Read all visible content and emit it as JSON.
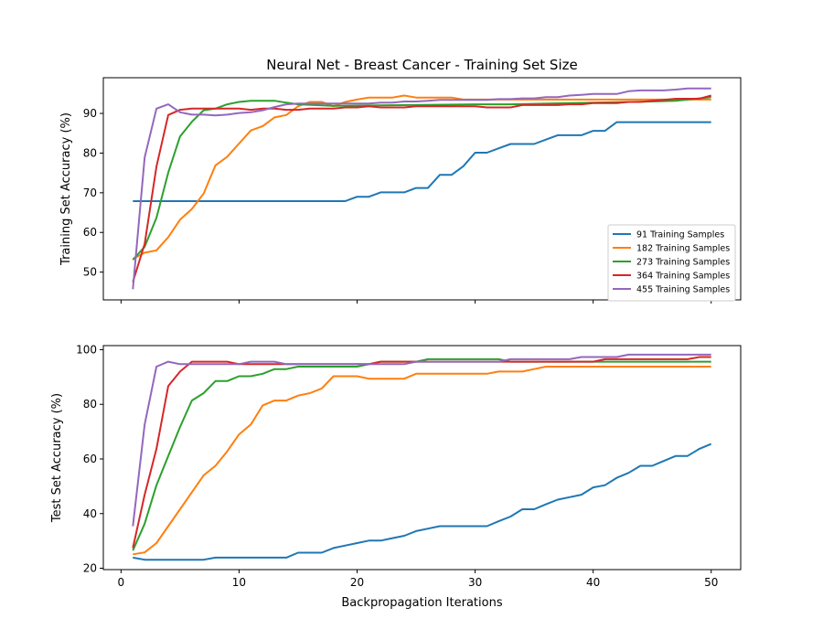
{
  "chart_data": [
    {
      "type": "line",
      "title": "Neural Net - Breast Cancer - Training Set Size",
      "xlabel": "",
      "ylabel": "Training Set Accuracy (%)",
      "xlim": [
        -1.5,
        52.5
      ],
      "ylim": [
        43,
        99
      ],
      "xticks": [
        0,
        10,
        20,
        30,
        40,
        50
      ],
      "yticks": [
        50,
        60,
        70,
        80,
        90
      ],
      "legend_position": "lower-right",
      "grid": false,
      "series": [
        {
          "name": "91 Training Samples",
          "color": "#1f77b4",
          "x": [
            1,
            19,
            20,
            21,
            22,
            24,
            25,
            26,
            27,
            28,
            29,
            30,
            31,
            32,
            33,
            35,
            36,
            37,
            39,
            40,
            41,
            42,
            50
          ],
          "y": [
            67.9,
            67.9,
            69.0,
            69.0,
            70.1,
            70.1,
            71.2,
            71.2,
            74.5,
            74.5,
            76.7,
            80.1,
            80.1,
            81.2,
            82.3,
            82.3,
            83.4,
            84.5,
            84.5,
            85.6,
            85.6,
            87.8,
            87.8
          ]
        },
        {
          "name": "182 Training Samples",
          "color": "#ff7f0e",
          "x": [
            1,
            2,
            3,
            4,
            5,
            6,
            7,
            8,
            9,
            10,
            11,
            12,
            13,
            14,
            15,
            16,
            17,
            18,
            19,
            20,
            21,
            22,
            23,
            24,
            25,
            28,
            29,
            50
          ],
          "y": [
            53.3,
            54.9,
            55.5,
            58.8,
            63.2,
            65.9,
            69.8,
            76.9,
            79.1,
            82.4,
            85.7,
            86.8,
            89.0,
            89.6,
            91.8,
            92.9,
            92.9,
            91.8,
            92.9,
            93.5,
            94.0,
            94.0,
            94.0,
            94.5,
            94.0,
            94.0,
            93.5,
            93.5
          ]
        },
        {
          "name": "273 Training Samples",
          "color": "#2ca02c",
          "x": [
            1,
            2,
            3,
            4,
            5,
            6,
            7,
            8,
            9,
            10,
            11,
            12,
            13,
            14,
            15,
            18,
            30,
            32,
            33,
            40,
            45,
            47,
            50
          ],
          "y": [
            53.1,
            56.4,
            63.7,
            75.1,
            84.2,
            87.9,
            90.8,
            91.2,
            92.3,
            92.9,
            93.2,
            93.2,
            93.2,
            92.7,
            92.3,
            91.9,
            92.3,
            92.3,
            92.3,
            92.7,
            93.0,
            93.2,
            94.1
          ]
        },
        {
          "name": "364 Training Samples",
          "color": "#d62728",
          "x": [
            1,
            2,
            3,
            4,
            5,
            6,
            7,
            8,
            9,
            10,
            11,
            12,
            13,
            14,
            15,
            16,
            17,
            18,
            19,
            20,
            21,
            22,
            23,
            24,
            25,
            26,
            27,
            28,
            29,
            30,
            31,
            32,
            33,
            34,
            35,
            36,
            37,
            38,
            39,
            40,
            41,
            42,
            43,
            44,
            45,
            46,
            47,
            48,
            49,
            50
          ],
          "y": [
            47.5,
            57.1,
            76.6,
            89.6,
            90.9,
            91.2,
            91.2,
            91.2,
            91.2,
            91.2,
            90.9,
            91.2,
            91.2,
            90.9,
            90.9,
            91.2,
            91.2,
            91.2,
            91.5,
            91.5,
            91.8,
            91.5,
            91.5,
            91.5,
            91.8,
            91.8,
            91.8,
            91.8,
            91.8,
            91.8,
            91.5,
            91.5,
            91.5,
            92.1,
            92.1,
            92.1,
            92.1,
            92.3,
            92.3,
            92.6,
            92.6,
            92.6,
            92.9,
            92.9,
            93.2,
            93.4,
            93.7,
            93.7,
            93.7,
            94.5
          ]
        },
        {
          "name": "455 Training Samples",
          "color": "#9467bd",
          "x": [
            1,
            2,
            3,
            4,
            5,
            6,
            7,
            8,
            9,
            10,
            11,
            12,
            13,
            14,
            15,
            16,
            17,
            18,
            19,
            20,
            21,
            22,
            23,
            24,
            25,
            26,
            27,
            28,
            29,
            30,
            31,
            32,
            33,
            34,
            35,
            36,
            37,
            38,
            39,
            40,
            41,
            42,
            43,
            44,
            45,
            46,
            47,
            48,
            49,
            50
          ],
          "y": [
            45.7,
            78.9,
            91.2,
            92.3,
            90.3,
            89.7,
            89.7,
            89.5,
            89.7,
            90.1,
            90.3,
            90.8,
            91.6,
            92.3,
            92.5,
            92.5,
            92.5,
            92.5,
            92.5,
            92.5,
            92.5,
            92.7,
            92.7,
            93.0,
            93.0,
            93.2,
            93.4,
            93.4,
            93.4,
            93.4,
            93.4,
            93.6,
            93.6,
            93.8,
            93.8,
            94.1,
            94.1,
            94.5,
            94.7,
            94.9,
            94.9,
            94.9,
            95.6,
            95.8,
            95.8,
            95.8,
            96.0,
            96.3,
            96.3,
            96.3
          ]
        }
      ]
    },
    {
      "type": "line",
      "title": "",
      "xlabel": "Backpropagation Iterations",
      "ylabel": "Test Set Accuracy (%)",
      "xlim": [
        -1.5,
        52.5
      ],
      "ylim": [
        19.5,
        101.5
      ],
      "xticks": [
        0,
        10,
        20,
        30,
        40,
        50
      ],
      "yticks": [
        20,
        40,
        60,
        80,
        100
      ],
      "grid": false,
      "series": [
        {
          "name": "91 Training Samples",
          "color": "#1f77b4",
          "x": [
            1,
            2,
            7,
            8,
            14,
            15,
            17,
            18,
            19,
            20,
            21,
            22,
            23,
            24,
            25,
            26,
            27,
            31,
            32,
            33,
            34,
            35,
            36,
            37,
            38,
            39,
            40,
            41,
            42,
            43,
            44,
            45,
            46,
            47,
            48,
            49,
            50
          ],
          "y": [
            23.9,
            23.1,
            23.1,
            23.9,
            23.9,
            25.7,
            25.7,
            27.4,
            28.3,
            29.2,
            30.1,
            30.1,
            31.0,
            31.9,
            33.6,
            34.5,
            35.4,
            35.4,
            37.2,
            38.9,
            41.6,
            41.6,
            43.4,
            45.1,
            46.0,
            46.9,
            49.6,
            50.4,
            53.1,
            54.9,
            57.5,
            57.5,
            59.3,
            61.1,
            61.1,
            63.7,
            65.5
          ]
        },
        {
          "name": "182 Training Samples",
          "color": "#ff7f0e",
          "x": [
            1,
            2,
            3,
            4,
            5,
            6,
            7,
            8,
            9,
            10,
            11,
            12,
            13,
            14,
            15,
            16,
            17,
            18,
            19,
            20,
            21,
            22,
            23,
            24,
            25,
            26,
            27,
            28,
            29,
            30,
            31,
            32,
            33,
            34,
            35,
            36,
            37,
            38,
            39,
            40,
            50
          ],
          "y": [
            25.1,
            25.8,
            29.2,
            35.4,
            41.6,
            47.8,
            54.0,
            57.5,
            62.8,
            69.0,
            72.6,
            79.6,
            81.4,
            81.4,
            83.2,
            84.1,
            85.8,
            90.3,
            90.3,
            90.3,
            89.4,
            89.4,
            89.4,
            89.4,
            91.2,
            91.2,
            91.2,
            91.2,
            91.2,
            91.2,
            91.2,
            92.0,
            92.0,
            92.0,
            92.9,
            93.8,
            93.8,
            93.8,
            93.8,
            93.8,
            93.8
          ]
        },
        {
          "name": "273 Training Samples",
          "color": "#2ca02c",
          "x": [
            1,
            2,
            3,
            4,
            5,
            6,
            7,
            8,
            9,
            10,
            11,
            12,
            13,
            14,
            15,
            16,
            20,
            21,
            22,
            23,
            24,
            25,
            26,
            27,
            32,
            33,
            34,
            35,
            40,
            50
          ],
          "y": [
            26.5,
            36.3,
            50.4,
            61.1,
            71.7,
            81.4,
            84.1,
            88.5,
            88.5,
            90.3,
            90.3,
            91.2,
            92.9,
            92.9,
            93.8,
            93.8,
            93.8,
            94.7,
            95.6,
            95.6,
            95.6,
            95.6,
            96.5,
            96.5,
            96.5,
            95.6,
            95.6,
            95.6,
            95.6,
            95.6
          ]
        },
        {
          "name": "364 Training Samples",
          "color": "#d62728",
          "x": [
            1,
            2,
            3,
            4,
            5,
            6,
            7,
            8,
            9,
            10,
            11,
            12,
            13,
            14,
            15,
            16,
            17,
            18,
            19,
            20,
            21,
            22,
            23,
            24,
            25,
            26,
            27,
            28,
            29,
            30,
            31,
            32,
            33,
            34,
            35,
            36,
            37,
            38,
            39,
            40,
            41,
            42,
            43,
            44,
            45,
            46,
            47,
            48,
            49,
            50
          ],
          "y": [
            27.4,
            46.9,
            63.7,
            86.7,
            92.0,
            95.6,
            95.6,
            95.6,
            95.6,
            94.7,
            94.7,
            94.7,
            94.7,
            94.7,
            94.7,
            94.7,
            94.7,
            94.7,
            94.7,
            94.7,
            94.7,
            95.6,
            95.6,
            95.6,
            95.6,
            95.6,
            95.6,
            95.6,
            95.6,
            95.6,
            95.6,
            95.6,
            95.6,
            95.6,
            95.6,
            95.6,
            95.6,
            95.6,
            95.6,
            95.6,
            96.5,
            96.5,
            96.5,
            96.5,
            96.5,
            96.5,
            96.5,
            96.5,
            97.3,
            97.3
          ]
        },
        {
          "name": "455 Training Samples",
          "color": "#9467bd",
          "x": [
            1,
            2,
            3,
            4,
            5,
            6,
            7,
            8,
            9,
            10,
            11,
            12,
            13,
            14,
            15,
            16,
            17,
            18,
            19,
            20,
            21,
            22,
            23,
            24,
            25,
            26,
            27,
            28,
            29,
            30,
            31,
            32,
            33,
            34,
            35,
            36,
            37,
            38,
            39,
            40,
            41,
            42,
            43,
            44,
            45,
            46,
            47,
            48,
            49,
            50
          ],
          "y": [
            35.4,
            72.6,
            93.8,
            95.6,
            94.7,
            94.7,
            94.7,
            94.7,
            94.7,
            94.7,
            95.6,
            95.6,
            95.6,
            94.7,
            94.7,
            94.7,
            94.7,
            94.7,
            94.7,
            94.7,
            94.7,
            94.7,
            94.7,
            94.7,
            95.6,
            95.6,
            95.6,
            95.6,
            95.6,
            95.6,
            95.6,
            95.6,
            96.5,
            96.5,
            96.5,
            96.5,
            96.5,
            96.5,
            97.3,
            97.3,
            97.3,
            97.3,
            98.2,
            98.2,
            98.2,
            98.2,
            98.2,
            98.2,
            98.2,
            98.2
          ]
        }
      ]
    }
  ]
}
